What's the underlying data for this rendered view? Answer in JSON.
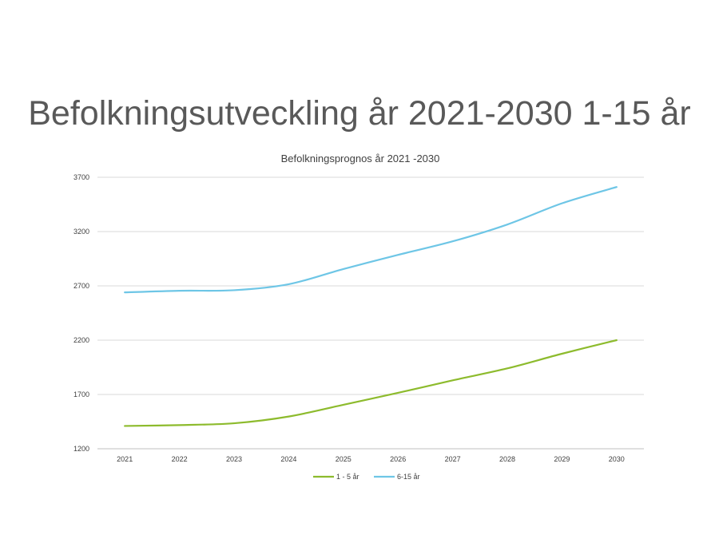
{
  "slide": {
    "title": "Befolkningsutveckling år 2021-2030 1-15 år"
  },
  "chart_data": {
    "type": "line",
    "title": "Befolkningsprognos år 2021 -2030",
    "xlabel": "",
    "ylabel": "",
    "x": [
      "2021",
      "2022",
      "2023",
      "2024",
      "2025",
      "2026",
      "2027",
      "2028",
      "2029",
      "2030"
    ],
    "ylim": [
      1200,
      3700
    ],
    "yticks": [
      1200,
      1700,
      2200,
      2700,
      3200,
      3700
    ],
    "grid": true,
    "legend_position": "bottom",
    "series": [
      {
        "name": "1 - 5 år",
        "color": "#8DBB2D",
        "values": [
          1410,
          1418,
          1435,
          1497,
          1605,
          1715,
          1830,
          1940,
          2075,
          2200
        ]
      },
      {
        "name": "6-15 år",
        "color": "#6EC6E6",
        "values": [
          2640,
          2655,
          2660,
          2715,
          2855,
          2985,
          3110,
          3265,
          3460,
          3610
        ]
      }
    ]
  }
}
